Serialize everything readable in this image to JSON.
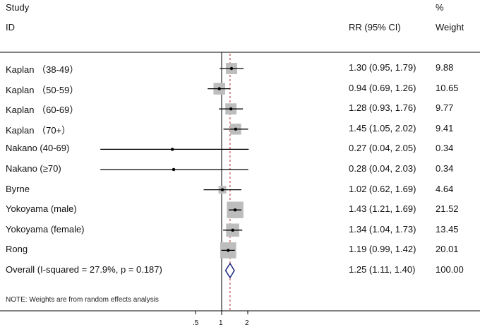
{
  "header": {
    "study_line1": "Study",
    "study_line2": "ID",
    "rr_label": "RR (95% CI)",
    "pct": "%",
    "weight": "Weight"
  },
  "note": "NOTE: Weights are from random effects analysis",
  "chart_data": {
    "type": "forest",
    "scale": "log",
    "null_value": 1,
    "x_ticks": [
      ".5",
      "1",
      "2"
    ],
    "x_tick_values": [
      0.5,
      1,
      2
    ],
    "xlim": [
      0.04,
      2.05
    ],
    "rows": [
      {
        "label": "Kaplan （38-49）",
        "rr": 1.3,
        "lo": 0.95,
        "hi": 1.79,
        "ci": "1.30 (0.95, 1.79)",
        "weight": "9.88",
        "w": 9.88
      },
      {
        "label": "Kaplan （50-59）",
        "rr": 0.94,
        "lo": 0.69,
        "hi": 1.26,
        "ci": "0.94 (0.69, 1.26)",
        "weight": "10.65",
        "w": 10.65
      },
      {
        "label": "Kaplan （60-69）",
        "rr": 1.28,
        "lo": 0.93,
        "hi": 1.76,
        "ci": "1.28 (0.93, 1.76)",
        "weight": "9.77",
        "w": 9.77
      },
      {
        "label": "Kaplan （70+）",
        "rr": 1.45,
        "lo": 1.05,
        "hi": 2.02,
        "ci": "1.45 (1.05, 2.02)",
        "weight": "9.41",
        "w": 9.41
      },
      {
        "label": "Nakano (40-69)",
        "rr": 0.27,
        "lo": 0.04,
        "hi": 2.05,
        "ci": "0.27 (0.04, 2.05)",
        "weight": "0.34",
        "w": 0.34
      },
      {
        "label": "Nakano (≥70)",
        "rr": 0.28,
        "lo": 0.04,
        "hi": 2.03,
        "ci": "0.28 (0.04, 2.03)",
        "weight": "0.34",
        "w": 0.34
      },
      {
        "label": "Byrne",
        "rr": 1.02,
        "lo": 0.62,
        "hi": 1.69,
        "ci": "1.02 (0.62, 1.69)",
        "weight": "4.64",
        "w": 4.64
      },
      {
        "label": "Yokoyama (male)",
        "rr": 1.43,
        "lo": 1.21,
        "hi": 1.69,
        "ci": "1.43 (1.21, 1.69)",
        "weight": "21.52",
        "w": 21.52
      },
      {
        "label": "Yokoyama (female)",
        "rr": 1.34,
        "lo": 1.04,
        "hi": 1.73,
        "ci": "1.34 (1.04, 1.73)",
        "weight": "13.45",
        "w": 13.45
      },
      {
        "label": "Rong",
        "rr": 1.19,
        "lo": 0.99,
        "hi": 1.42,
        "ci": "1.19 (0.99, 1.42)",
        "weight": "20.01",
        "w": 20.01
      }
    ],
    "overall": {
      "label": "Overall  (I-squared = 27.9%, p = 0.187)",
      "rr": 1.25,
      "lo": 1.11,
      "hi": 1.4,
      "ci": "1.25 (1.11, 1.40)",
      "weight": "100.00"
    },
    "colors": {
      "box": "#bdbdbd",
      "line": "#000000",
      "diamond": "#1a237e",
      "dashed": "#b22222"
    }
  }
}
